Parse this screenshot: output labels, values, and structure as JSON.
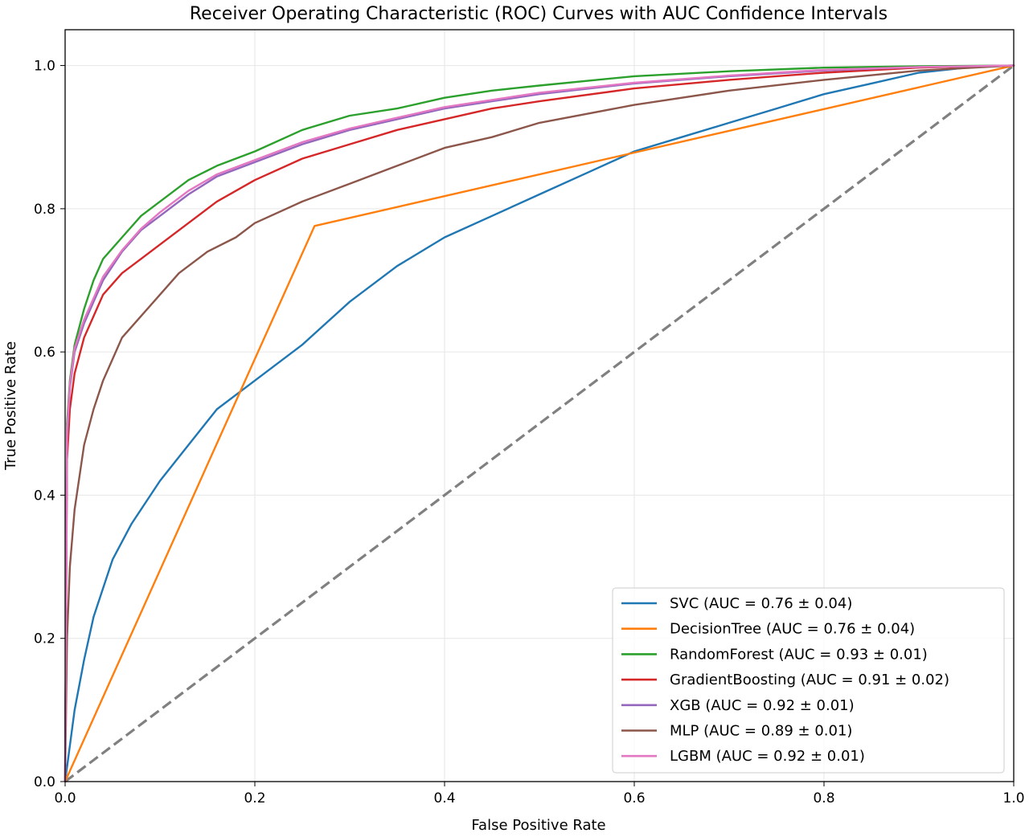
{
  "chart_data": {
    "type": "line",
    "title": "Receiver Operating Characteristic (ROC) Curves with AUC Confidence Intervals",
    "xlabel": "False Positive Rate",
    "ylabel": "True Positive Rate",
    "xlim": [
      0.0,
      1.0
    ],
    "ylim": [
      0.0,
      1.05
    ],
    "xticks": [
      "0.0",
      "0.2",
      "0.4",
      "0.6",
      "0.8",
      "1.0"
    ],
    "yticks": [
      "0.0",
      "0.2",
      "0.4",
      "0.6",
      "0.8",
      "1.0"
    ],
    "grid": true,
    "legend_position": "lower-right",
    "series": [
      {
        "name": "SVC (AUC = 0.76 ± 0.04)",
        "color": "#1f77b4",
        "x": [
          0.0,
          0.005,
          0.01,
          0.02,
          0.03,
          0.05,
          0.07,
          0.1,
          0.13,
          0.16,
          0.2,
          0.25,
          0.3,
          0.35,
          0.4,
          0.45,
          0.5,
          0.55,
          0.6,
          0.65,
          0.7,
          0.75,
          0.8,
          0.85,
          0.9,
          0.95,
          1.0
        ],
        "y": [
          0.0,
          0.05,
          0.1,
          0.17,
          0.23,
          0.31,
          0.36,
          0.42,
          0.47,
          0.52,
          0.56,
          0.61,
          0.67,
          0.72,
          0.76,
          0.79,
          0.82,
          0.85,
          0.88,
          0.9,
          0.92,
          0.94,
          0.96,
          0.975,
          0.99,
          0.997,
          1.0
        ]
      },
      {
        "name": "DecisionTree (AUC = 0.76 ± 0.04)",
        "color": "#ff7f0e",
        "x": [
          0.0,
          0.263,
          1.0
        ],
        "y": [
          0.0,
          0.776,
          1.0
        ]
      },
      {
        "name": "RandomForest (AUC = 0.93 ± 0.01)",
        "color": "#2ca02c",
        "x": [
          0.0,
          0.002,
          0.005,
          0.01,
          0.02,
          0.03,
          0.04,
          0.06,
          0.08,
          0.1,
          0.13,
          0.16,
          0.2,
          0.25,
          0.3,
          0.35,
          0.4,
          0.45,
          0.5,
          0.6,
          0.7,
          0.8,
          0.9,
          1.0
        ],
        "y": [
          0.0,
          0.5,
          0.56,
          0.61,
          0.66,
          0.7,
          0.73,
          0.76,
          0.79,
          0.81,
          0.84,
          0.86,
          0.88,
          0.91,
          0.93,
          0.94,
          0.955,
          0.965,
          0.972,
          0.985,
          0.992,
          0.997,
          0.999,
          1.0
        ]
      },
      {
        "name": "GradientBoosting (AUC = 0.91 ± 0.02)",
        "color": "#d62728",
        "x": [
          0.0,
          0.002,
          0.005,
          0.01,
          0.02,
          0.03,
          0.04,
          0.06,
          0.08,
          0.1,
          0.13,
          0.16,
          0.2,
          0.25,
          0.3,
          0.35,
          0.4,
          0.45,
          0.5,
          0.6,
          0.7,
          0.8,
          0.9,
          1.0
        ],
        "y": [
          0.0,
          0.45,
          0.52,
          0.57,
          0.62,
          0.65,
          0.68,
          0.71,
          0.73,
          0.75,
          0.78,
          0.81,
          0.84,
          0.87,
          0.89,
          0.91,
          0.925,
          0.94,
          0.95,
          0.968,
          0.98,
          0.99,
          0.997,
          1.0
        ]
      },
      {
        "name": "XGB (AUC = 0.92 ± 0.01)",
        "color": "#9467bd",
        "x": [
          0.0,
          0.002,
          0.005,
          0.01,
          0.02,
          0.03,
          0.04,
          0.06,
          0.08,
          0.1,
          0.13,
          0.16,
          0.2,
          0.25,
          0.3,
          0.35,
          0.4,
          0.45,
          0.5,
          0.6,
          0.7,
          0.8,
          0.9,
          1.0
        ],
        "y": [
          0.0,
          0.48,
          0.55,
          0.6,
          0.64,
          0.67,
          0.7,
          0.74,
          0.77,
          0.79,
          0.82,
          0.845,
          0.865,
          0.89,
          0.91,
          0.925,
          0.94,
          0.95,
          0.96,
          0.975,
          0.985,
          0.993,
          0.998,
          1.0
        ]
      },
      {
        "name": "MLP (AUC = 0.89 ± 0.01)",
        "color": "#8c564b",
        "x": [
          0.0,
          0.002,
          0.005,
          0.01,
          0.02,
          0.03,
          0.04,
          0.05,
          0.06,
          0.08,
          0.1,
          0.12,
          0.15,
          0.18,
          0.2,
          0.25,
          0.3,
          0.35,
          0.4,
          0.45,
          0.5,
          0.6,
          0.7,
          0.8,
          0.9,
          1.0
        ],
        "y": [
          0.0,
          0.2,
          0.3,
          0.38,
          0.47,
          0.52,
          0.56,
          0.59,
          0.62,
          0.65,
          0.68,
          0.71,
          0.74,
          0.76,
          0.78,
          0.81,
          0.835,
          0.86,
          0.885,
          0.9,
          0.92,
          0.945,
          0.965,
          0.98,
          0.993,
          1.0
        ]
      },
      {
        "name": "LGBM (AUC = 0.92 ± 0.01)",
        "color": "#e377c2",
        "x": [
          0.0,
          0.002,
          0.005,
          0.01,
          0.02,
          0.03,
          0.04,
          0.06,
          0.08,
          0.1,
          0.13,
          0.16,
          0.2,
          0.25,
          0.3,
          0.35,
          0.4,
          0.45,
          0.5,
          0.6,
          0.7,
          0.8,
          0.9,
          1.0
        ],
        "y": [
          0.0,
          0.49,
          0.555,
          0.605,
          0.645,
          0.675,
          0.705,
          0.742,
          0.772,
          0.795,
          0.825,
          0.848,
          0.868,
          0.893,
          0.912,
          0.927,
          0.942,
          0.952,
          0.962,
          0.976,
          0.986,
          0.994,
          0.998,
          1.0
        ]
      }
    ],
    "reference_line": {
      "x": [
        0.0,
        1.0
      ],
      "y": [
        0.0,
        1.0
      ],
      "color": "#808080",
      "style": "dashed"
    }
  }
}
